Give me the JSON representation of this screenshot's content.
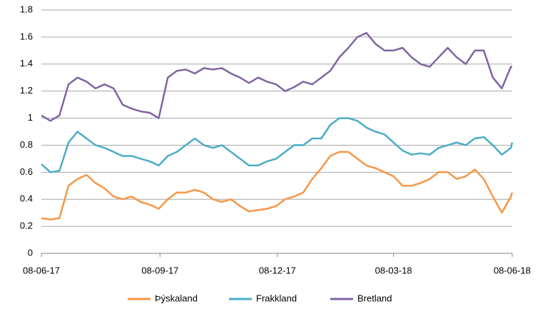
{
  "chart_data": {
    "type": "line",
    "x": [
      "08-06-17",
      "15-06-17",
      "22-06-17",
      "29-06-17",
      "06-07-17",
      "13-07-17",
      "20-07-17",
      "27-07-17",
      "03-08-17",
      "10-08-17",
      "17-08-17",
      "24-08-17",
      "31-08-17",
      "07-09-17",
      "14-09-17",
      "21-09-17",
      "28-09-17",
      "05-10-17",
      "12-10-17",
      "19-10-17",
      "26-10-17",
      "02-11-17",
      "09-11-17",
      "16-11-17",
      "23-11-17",
      "30-11-17",
      "07-12-17",
      "14-12-17",
      "21-12-17",
      "28-12-17",
      "04-01-18",
      "11-01-18",
      "18-01-18",
      "25-01-18",
      "01-02-18",
      "08-02-18",
      "15-02-18",
      "22-02-18",
      "01-03-18",
      "08-03-18",
      "15-03-18",
      "22-03-18",
      "29-03-18",
      "05-04-18",
      "12-04-18",
      "19-04-18",
      "26-04-18",
      "03-05-18",
      "10-05-18",
      "17-05-18",
      "24-05-18",
      "31-05-18",
      "07-06-18",
      "08-06-18"
    ],
    "series": [
      {
        "name": "Þýskaland",
        "color": "#f79646",
        "values": [
          0.26,
          0.25,
          0.26,
          0.5,
          0.55,
          0.58,
          0.52,
          0.48,
          0.42,
          0.4,
          0.42,
          0.38,
          0.36,
          0.33,
          0.4,
          0.45,
          0.45,
          0.47,
          0.45,
          0.4,
          0.38,
          0.4,
          0.35,
          0.31,
          0.32,
          0.33,
          0.35,
          0.4,
          0.42,
          0.45,
          0.55,
          0.63,
          0.72,
          0.75,
          0.75,
          0.7,
          0.65,
          0.63,
          0.6,
          0.57,
          0.5,
          0.5,
          0.52,
          0.55,
          0.6,
          0.6,
          0.55,
          0.57,
          0.62,
          0.55,
          0.42,
          0.3,
          0.42,
          0.45
        ]
      },
      {
        "name": "Frakkland",
        "color": "#4bacc6",
        "values": [
          0.66,
          0.6,
          0.61,
          0.82,
          0.9,
          0.85,
          0.8,
          0.78,
          0.75,
          0.72,
          0.72,
          0.7,
          0.68,
          0.65,
          0.72,
          0.75,
          0.8,
          0.85,
          0.8,
          0.78,
          0.8,
          0.75,
          0.7,
          0.65,
          0.65,
          0.68,
          0.7,
          0.75,
          0.8,
          0.8,
          0.85,
          0.85,
          0.95,
          1.0,
          1.0,
          0.98,
          0.93,
          0.9,
          0.88,
          0.82,
          0.76,
          0.73,
          0.74,
          0.73,
          0.78,
          0.8,
          0.82,
          0.8,
          0.85,
          0.86,
          0.8,
          0.73,
          0.78,
          0.82
        ]
      },
      {
        "name": "Bretland",
        "color": "#8064a2",
        "values": [
          1.02,
          0.98,
          1.02,
          1.25,
          1.3,
          1.27,
          1.22,
          1.25,
          1.22,
          1.1,
          1.07,
          1.05,
          1.04,
          1.0,
          1.3,
          1.35,
          1.36,
          1.33,
          1.37,
          1.36,
          1.37,
          1.33,
          1.3,
          1.26,
          1.3,
          1.27,
          1.25,
          1.2,
          1.23,
          1.27,
          1.25,
          1.3,
          1.35,
          1.45,
          1.52,
          1.6,
          1.63,
          1.55,
          1.5,
          1.5,
          1.52,
          1.45,
          1.4,
          1.38,
          1.45,
          1.52,
          1.45,
          1.4,
          1.5,
          1.5,
          1.3,
          1.22,
          1.38,
          1.38
        ]
      }
    ],
    "xlim": [
      "08-06-17",
      "08-06-18"
    ],
    "xticks": [
      "08-06-17",
      "08-09-17",
      "08-12-17",
      "08-03-18",
      "08-06-18"
    ],
    "ylim": [
      0,
      1.8
    ],
    "yticks": [
      0,
      0.2,
      0.4,
      0.6,
      0.8,
      1,
      1.2,
      1.4,
      1.6,
      1.8
    ],
    "grid": true,
    "legend": "bottom"
  }
}
